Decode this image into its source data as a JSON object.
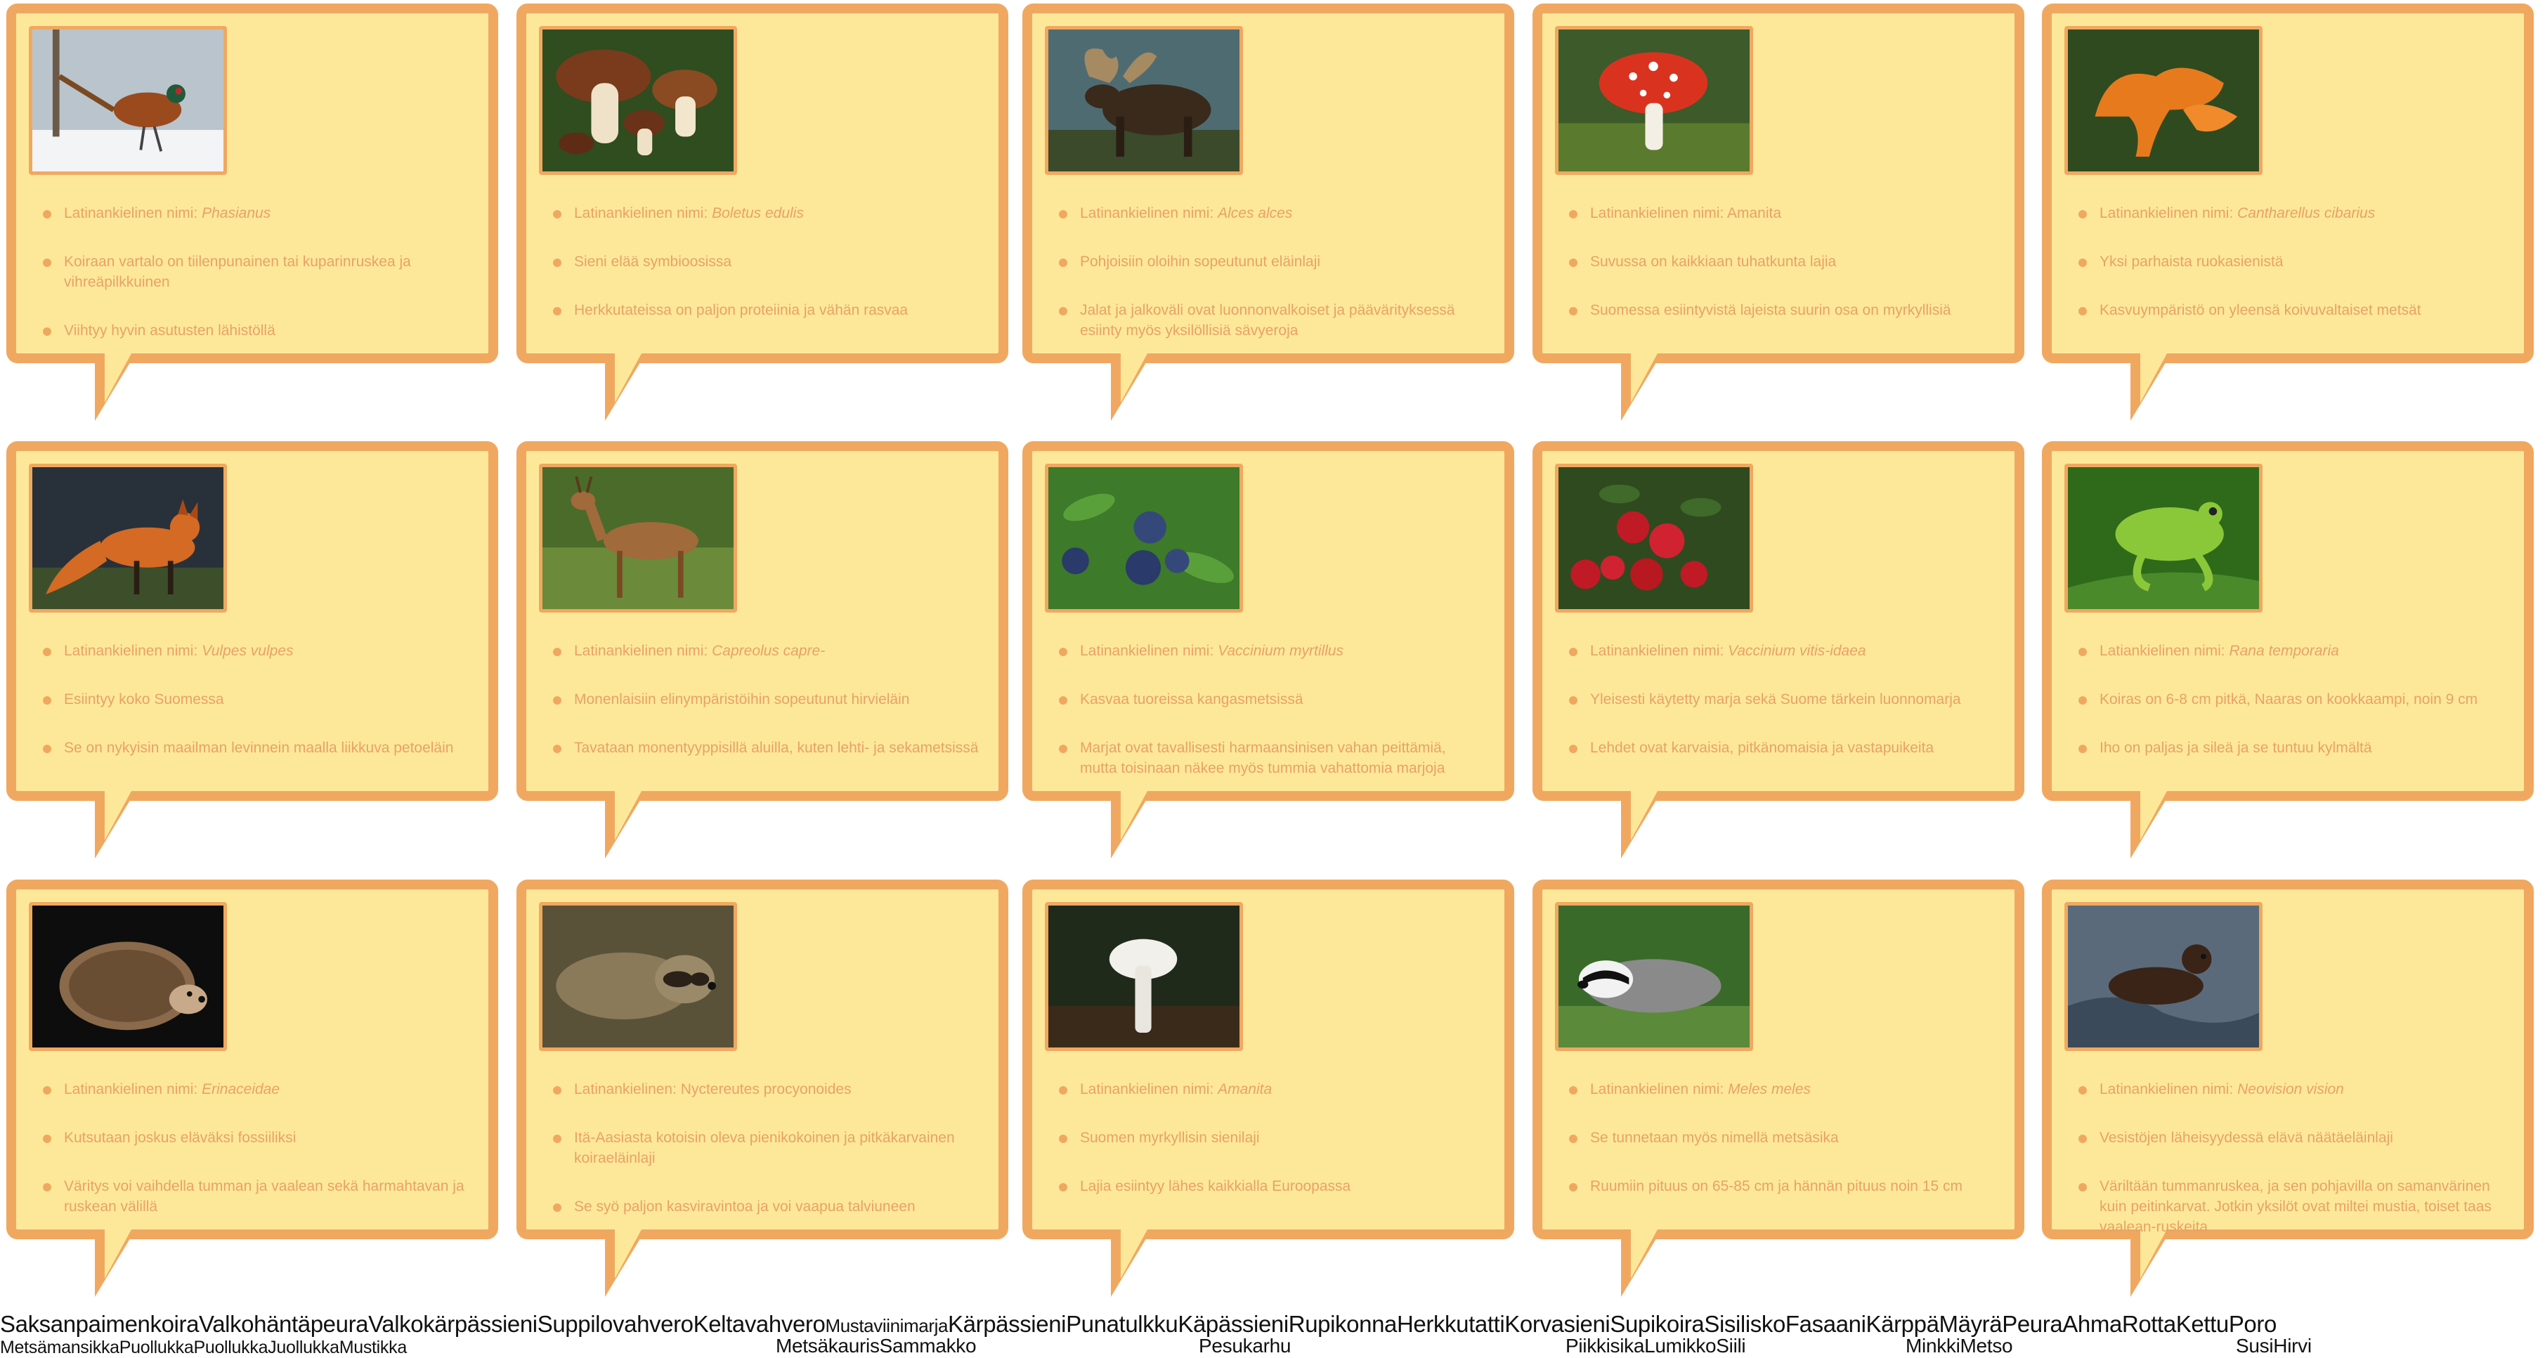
{
  "cards": [
    {
      "name": "pheasant",
      "photo_icon": "pheasant-photo",
      "facts": [
        {
          "pre": "Latinankielinen nimi: ",
          "it": "Phasianus"
        },
        {
          "pre": "Koiraan vartalo on tiilenpunainen tai kuparinruskea ja vihreäpilkkuinen",
          "it": ""
        },
        {
          "pre": "Viihtyy hyvin asutusten lähistöllä",
          "it": ""
        }
      ]
    },
    {
      "name": "porcini",
      "photo_icon": "porcini-mushroom-photo",
      "facts": [
        {
          "pre": "Latinankielinen nimi: ",
          "it": "Boletus edulis"
        },
        {
          "pre": "Sieni elää symbioosissa",
          "it": ""
        },
        {
          "pre": "Herkkutateissa on paljon proteiinia ja vähän rasvaa",
          "it": ""
        }
      ]
    },
    {
      "name": "moose",
      "photo_icon": "moose-photo",
      "facts": [
        {
          "pre": "Latinankielinen nimi: ",
          "it": "Alces alces"
        },
        {
          "pre": "Pohjoisiin oloihin sopeutunut eläinlaji",
          "it": ""
        },
        {
          "pre": "Jalat ja jalkoväli ovat luonnonvalkoiset ja päävärityksessä esiinty myös yksilöllisiä sävyeroja",
          "it": ""
        }
      ]
    },
    {
      "name": "fly-agaric",
      "photo_icon": "fly-agaric-photo",
      "facts": [
        {
          "pre": "Latinankielinen nimi: Amanita",
          "it": ""
        },
        {
          "pre": "Suvussa on kaikkiaan tuhatkunta lajia",
          "it": ""
        },
        {
          "pre": "Suomessa esiintyvistä lajeista suurin osa on myrkyllisiä",
          "it": ""
        }
      ]
    },
    {
      "name": "chanterelle",
      "photo_icon": "chanterelle-photo",
      "facts": [
        {
          "pre": "Latinankielinen nimi: ",
          "it": "Cantharellus cibarius"
        },
        {
          "pre": "Yksi parhaista ruokasienistä",
          "it": ""
        },
        {
          "pre": "Kasvuympäristö on yleensä koivuvaltaiset metsät",
          "it": ""
        }
      ]
    },
    {
      "name": "fox",
      "photo_icon": "fox-photo",
      "facts": [
        {
          "pre": "Latinankielinen nimi: ",
          "it": "Vulpes vulpes"
        },
        {
          "pre": "Esiintyy koko Suomessa",
          "it": ""
        },
        {
          "pre": "Se on nykyisin maailman levinnein maalla liikkuva petoeläin",
          "it": ""
        }
      ]
    },
    {
      "name": "roe-deer",
      "photo_icon": "roe-deer-photo",
      "facts": [
        {
          "pre": "Latinankielinen nimi: ",
          "it": "Capreolus capre-"
        },
        {
          "pre": "Monenlaisiin elinympäristöihin sopeutunut hirvieläin",
          "it": ""
        },
        {
          "pre": "Tavataan monentyyppisillä aluilla, kuten lehti- ja sekametsissä",
          "it": ""
        }
      ]
    },
    {
      "name": "bilberry",
      "photo_icon": "bilberry-photo",
      "facts": [
        {
          "pre": "Latinankielinen nimi: ",
          "it": "Vaccinium myrtillus"
        },
        {
          "pre": "Kasvaa tuoreissa kangasmetsissä",
          "it": ""
        },
        {
          "pre": "Marjat ovat tavallisesti harmaansinisen vahan peittämiä, mutta toisinaan näkee myös tummia vahattomia marjoja",
          "it": ""
        }
      ]
    },
    {
      "name": "lingonberry",
      "photo_icon": "lingonberry-photo",
      "facts": [
        {
          "pre": "Latinankielinen nimi: ",
          "it": "Vaccinium vitis-idaea"
        },
        {
          "pre": "Yleisesti käytetty marja sekä Suome tärkein luonnomarja",
          "it": ""
        },
        {
          "pre": "Lehdet ovat karvaisia, pitkänomaisia ja vastapuikeita",
          "it": ""
        }
      ]
    },
    {
      "name": "frog",
      "photo_icon": "frog-photo",
      "facts": [
        {
          "pre": "Latiankielinen nimi: ",
          "it": "Rana temporaria"
        },
        {
          "pre": "Koiras on 6-8 cm pitkä, Naaras on kookkaampi, noin 9 cm",
          "it": ""
        },
        {
          "pre": "Iho on paljas ja sileä ja se tuntuu kylmältä",
          "it": ""
        }
      ]
    },
    {
      "name": "hedgehog",
      "photo_icon": "hedgehog-photo",
      "facts": [
        {
          "pre": "Latinankielinen nimi: ",
          "it": "Erinaceidae"
        },
        {
          "pre": "Kutsutaan joskus eläväksi fossiiliksi",
          "it": ""
        },
        {
          "pre": "Väritys voi vaihdella tumman ja vaalean sekä harmahtavan ja ruskean välillä",
          "it": ""
        }
      ]
    },
    {
      "name": "raccoon-dog",
      "photo_icon": "raccoon-dog-photo",
      "facts": [
        {
          "pre": "Latinankielinen: Nyctereutes procyonoides",
          "it": ""
        },
        {
          "pre": "Itä-Aasiasta kotoisin oleva pienikokoinen ja pitkäkarvainen koiraeläinlaji",
          "it": ""
        },
        {
          "pre": "Se syö paljon kasviravintoa ja voi vaapua talviuneen",
          "it": ""
        }
      ]
    },
    {
      "name": "destroying-angel",
      "photo_icon": "white-mushroom-photo",
      "facts": [
        {
          "pre": "Latinankielinen nimi: ",
          "it": "Amanita"
        },
        {
          "pre": "Suomen myrkyllisin sienilaji",
          "it": ""
        },
        {
          "pre": "Lajia esiintyy lähes kaikkialla Euroopassa",
          "it": ""
        }
      ]
    },
    {
      "name": "badger",
      "photo_icon": "badger-photo",
      "facts": [
        {
          "pre": "Latinankielinen nimi: ",
          "it": "Meles meles"
        },
        {
          "pre": "Se tunnetaan myös nimellä metsäsika",
          "it": ""
        },
        {
          "pre": "Ruumiin pituus on 65-85 cm ja hännän pituus noin 15 cm",
          "it": ""
        }
      ]
    },
    {
      "name": "mink",
      "photo_icon": "mink-photo",
      "facts": [
        {
          "pre": "Latinankielinen nimi: ",
          "it": "Neovision vision"
        },
        {
          "pre": "Vesistöjen läheisyydessä elävä näätäeläinlaji",
          "it": ""
        },
        {
          "pre": "Väriltään tummanruskea, ja sen pohjavilla on samanvärinen kuin peitinkarvat. Jotkin yksilöt ovat miltei mustia, toiset taas vaalean-ruskeita",
          "it": ""
        }
      ]
    }
  ],
  "word_bank": {
    "line1": "SaksanpaimenkoiraValkohäntäpeuraValkokärpässieniSuppilovahveroKeltavahvero",
    "line1_small": "Mustaviinimarja",
    "line1_b": "KärpässieniPunatulkkuKäpässieniRupikonnaHerkkutattiKorvasieniSupikoiraSisiliskoFasaaniKärppäMäyräPeuraAhmaRottaKettuPoro",
    "line2_a": "MetsämansikkaPuollukkaPuollukkaJuollukkaMustikka",
    "line2_b": "MetsäkaurisSammakko",
    "line2_c": "Pesukarhu",
    "line2_d": "PiikkisikaLumikkoSiili",
    "line2_e": "MinkkiMetso",
    "line2_f": "SusiHirvi"
  }
}
